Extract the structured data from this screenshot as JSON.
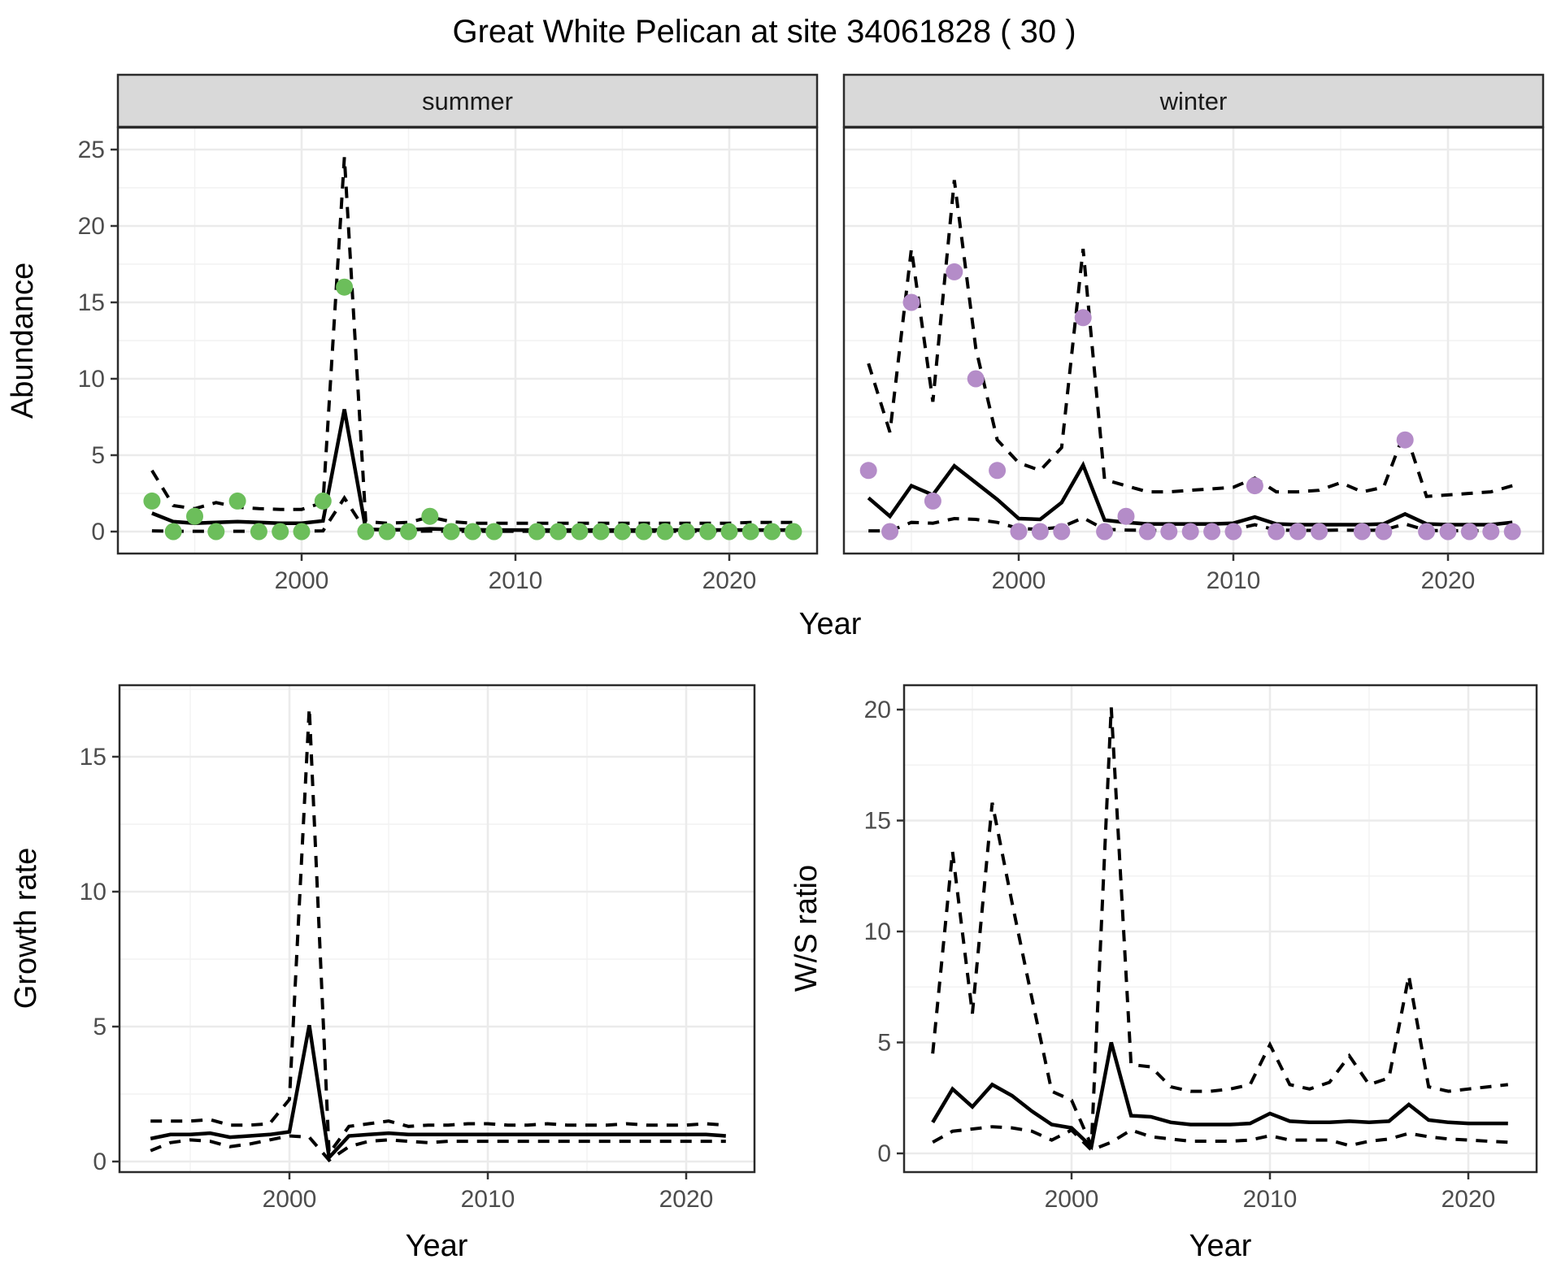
{
  "title": "Great White Pelican at site 34061828 ( 30 )",
  "colors": {
    "summer_point": "#6CBE5B",
    "winter_point": "#B48CC8",
    "line": "#000000",
    "strip_fill": "#D9D9D9",
    "strip_border": "#2b2b2b",
    "panel_border": "#2b2b2b",
    "grid_major": "#EBEBEB",
    "grid_minor": "#F2F2F2",
    "tick_text": "#4D4D4D",
    "tick_mark": "#333333"
  },
  "chart_data": [
    {
      "id": "abundance-summer",
      "type": "line",
      "facet_label": "summer",
      "xlabel": "Year",
      "ylabel": "Abundance",
      "legend_position": "none",
      "grid": true,
      "xlim": [
        1991.4,
        2024.1
      ],
      "ylim": [
        -1.4,
        26.4
      ],
      "xticks": [
        2000,
        2010,
        2020
      ],
      "yticks": [
        0,
        5,
        10,
        15,
        20,
        25
      ],
      "x": [
        1993,
        1994,
        1995,
        1996,
        1997,
        1998,
        1999,
        2000,
        2001,
        2002,
        2003,
        2004,
        2005,
        2006,
        2007,
        2008,
        2009,
        2010,
        2011,
        2012,
        2013,
        2014,
        2015,
        2016,
        2017,
        2018,
        2019,
        2020,
        2021,
        2022,
        2023
      ],
      "observed": [
        2,
        0,
        1,
        0,
        2,
        0,
        0,
        0,
        2,
        16,
        0,
        0,
        0,
        1,
        0,
        0,
        0,
        null,
        0,
        0,
        0,
        0,
        0,
        0,
        0,
        0,
        0,
        0,
        0,
        0,
        0
      ],
      "fit": [
        1.2,
        0.65,
        0.55,
        0.6,
        0.65,
        0.6,
        0.55,
        0.55,
        0.7,
        8,
        0.15,
        0.12,
        0.12,
        0.18,
        0.15,
        0.12,
        0.1,
        0.1,
        0.1,
        0.1,
        0.1,
        0.1,
        0.1,
        0.1,
        0.1,
        0.1,
        0.1,
        0.1,
        0.1,
        0.1,
        0.1
      ],
      "upper": [
        4,
        1.7,
        1.5,
        1.9,
        1.6,
        1.5,
        1.45,
        1.45,
        1.9,
        24.5,
        0.65,
        0.55,
        0.6,
        0.95,
        0.65,
        0.55,
        0.55,
        0.55,
        0.55,
        0.55,
        0.55,
        0.55,
        0.55,
        0.55,
        0.55,
        0.55,
        0.55,
        0.55,
        0.6,
        0.6,
        0.6
      ],
      "lower": [
        0.05,
        0.02,
        0.02,
        0.02,
        0.02,
        0.02,
        0.02,
        0.02,
        0.05,
        2.2,
        0.03,
        0.02,
        0.02,
        0.03,
        0.02,
        0.02,
        0.02,
        0.02,
        0.02,
        0.02,
        0.02,
        0.02,
        0.02,
        0.02,
        0.02,
        0.02,
        0.02,
        0.02,
        0.02,
        0.02,
        0.02
      ]
    },
    {
      "id": "abundance-winter",
      "type": "line",
      "facet_label": "winter",
      "xlabel": "Year",
      "ylabel": "Abundance",
      "legend_position": "none",
      "grid": true,
      "xlim": [
        1991.9,
        2024.4
      ],
      "ylim": [
        -1.4,
        26.4
      ],
      "xticks": [
        2000,
        2010,
        2020
      ],
      "yticks": [
        0,
        5,
        10,
        15,
        20,
        25
      ],
      "x": [
        1993,
        1994,
        1995,
        1996,
        1997,
        1998,
        1999,
        2000,
        2001,
        2002,
        2003,
        2004,
        2005,
        2006,
        2007,
        2008,
        2009,
        2010,
        2011,
        2012,
        2013,
        2014,
        2015,
        2016,
        2017,
        2018,
        2019,
        2020,
        2021,
        2022,
        2023
      ],
      "observed": [
        4,
        0,
        15,
        2,
        17,
        10,
        4,
        0,
        0,
        0,
        14,
        0,
        1,
        0,
        0,
        0,
        0,
        0,
        3,
        0,
        0,
        0,
        null,
        0,
        0,
        6,
        0,
        0,
        0,
        0,
        0
      ],
      "fit": [
        2.2,
        1.0,
        3.0,
        2.4,
        4.3,
        3.2,
        2.1,
        0.85,
        0.8,
        1.9,
        4.35,
        0.75,
        0.6,
        0.5,
        0.5,
        0.5,
        0.5,
        0.55,
        0.95,
        0.5,
        0.45,
        0.45,
        0.45,
        0.45,
        0.5,
        1.15,
        0.5,
        0.45,
        0.45,
        0.45,
        0.6
      ],
      "upper": [
        11,
        6.5,
        18.5,
        8.5,
        23,
        12,
        6,
        4.5,
        4,
        5.5,
        18.5,
        3.4,
        3,
        2.6,
        2.6,
        2.7,
        2.8,
        2.9,
        3.5,
        2.6,
        2.6,
        2.7,
        3.2,
        2.6,
        2.9,
        6.6,
        2.3,
        2.4,
        2.5,
        2.6,
        3.0
      ],
      "lower": [
        0.05,
        0.05,
        0.6,
        0.55,
        0.85,
        0.8,
        0.6,
        0.2,
        0.15,
        0.3,
        0.9,
        0.15,
        0.1,
        0.08,
        0.08,
        0.08,
        0.1,
        0.12,
        0.45,
        0.1,
        0.08,
        0.08,
        0.1,
        0.08,
        0.1,
        0.5,
        0.08,
        0.06,
        0.06,
        0.06,
        0.1
      ]
    },
    {
      "id": "growth-rate",
      "type": "line",
      "facet_label": null,
      "xlabel": "Year",
      "ylabel": "Growth rate",
      "legend_position": "none",
      "grid": true,
      "xlim": [
        1991.55,
        2023.45
      ],
      "ylim": [
        -0.8,
        17.65
      ],
      "xticks": [
        2000,
        2010,
        2020
      ],
      "yticks": [
        0,
        5,
        10,
        15
      ],
      "x": [
        1993,
        1994,
        1995,
        1996,
        1997,
        1998,
        1999,
        2000,
        2001,
        2002,
        2003,
        2004,
        2005,
        2006,
        2007,
        2008,
        2009,
        2010,
        2011,
        2012,
        2013,
        2014,
        2015,
        2016,
        2017,
        2018,
        2019,
        2020,
        2021,
        2022
      ],
      "fit": [
        0.85,
        1.0,
        1.0,
        1.05,
        0.9,
        0.95,
        1.0,
        1.1,
        5.05,
        0.15,
        0.95,
        1.0,
        1.05,
        1.0,
        1.0,
        1.0,
        1.0,
        1.0,
        1.0,
        1.0,
        1.0,
        1.0,
        1.0,
        1.0,
        1.0,
        1.0,
        1.0,
        1.0,
        1.0,
        0.95
      ],
      "upper": [
        1.5,
        1.5,
        1.5,
        1.55,
        1.35,
        1.35,
        1.4,
        2.3,
        16.8,
        0.3,
        1.3,
        1.4,
        1.5,
        1.3,
        1.35,
        1.35,
        1.4,
        1.4,
        1.35,
        1.35,
        1.4,
        1.35,
        1.35,
        1.35,
        1.4,
        1.35,
        1.35,
        1.35,
        1.4,
        1.35
      ],
      "lower": [
        0.4,
        0.7,
        0.8,
        0.75,
        0.55,
        0.65,
        0.8,
        0.95,
        0.9,
        0.05,
        0.55,
        0.75,
        0.8,
        0.75,
        0.7,
        0.75,
        0.75,
        0.75,
        0.75,
        0.75,
        0.75,
        0.75,
        0.75,
        0.75,
        0.75,
        0.75,
        0.75,
        0.75,
        0.75,
        0.75
      ]
    },
    {
      "id": "ws-ratio",
      "type": "line",
      "facet_label": null,
      "xlabel": "Year",
      "ylabel": "W/S ratio",
      "legend_position": "none",
      "grid": true,
      "xlim": [
        1991.55,
        2023.45
      ],
      "ylim": [
        -0.9,
        21.1
      ],
      "xticks": [
        2000,
        2010,
        2020
      ],
      "yticks": [
        0,
        5,
        10,
        15,
        20
      ],
      "x": [
        1993,
        1994,
        1995,
        1996,
        1997,
        1998,
        1999,
        2000,
        2001,
        2002,
        2003,
        2004,
        2005,
        2006,
        2007,
        2008,
        2009,
        2010,
        2011,
        2012,
        2013,
        2014,
        2015,
        2016,
        2017,
        2018,
        2019,
        2020,
        2021,
        2022
      ],
      "fit": [
        1.4,
        2.9,
        2.1,
        3.1,
        2.6,
        1.9,
        1.3,
        1.15,
        0.3,
        5.0,
        1.7,
        1.65,
        1.4,
        1.3,
        1.3,
        1.3,
        1.35,
        1.8,
        1.45,
        1.4,
        1.4,
        1.45,
        1.4,
        1.45,
        2.2,
        1.5,
        1.4,
        1.35,
        1.35,
        1.35
      ],
      "upper": [
        4.5,
        13.6,
        6.3,
        15.8,
        11.3,
        7.0,
        2.8,
        2.4,
        0.35,
        20.1,
        4.0,
        3.9,
        3.0,
        2.8,
        2.8,
        2.9,
        3.1,
        4.9,
        3.1,
        2.9,
        3.2,
        4.4,
        3.1,
        3.4,
        8.0,
        3.0,
        2.8,
        2.9,
        3.0,
        3.1
      ],
      "lower": [
        0.5,
        1.0,
        1.1,
        1.2,
        1.15,
        1.0,
        0.6,
        1.05,
        0.15,
        0.5,
        1.05,
        0.75,
        0.65,
        0.55,
        0.55,
        0.55,
        0.6,
        0.8,
        0.6,
        0.6,
        0.6,
        0.35,
        0.55,
        0.65,
        0.9,
        0.75,
        0.65,
        0.6,
        0.55,
        0.5
      ]
    }
  ]
}
